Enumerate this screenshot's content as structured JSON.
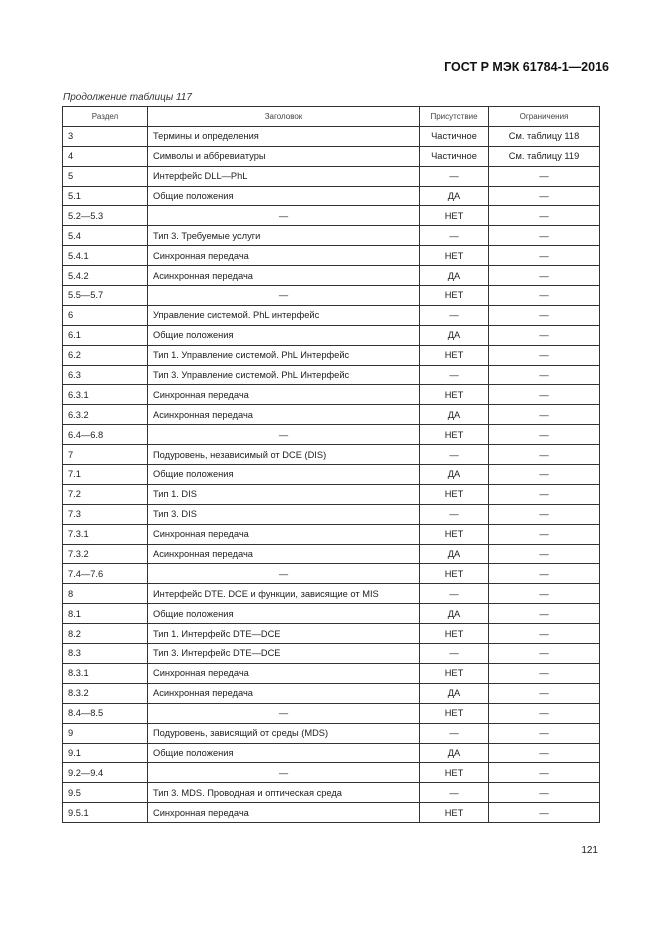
{
  "header": {
    "standard": "ГОСТ Р МЭК 61784-1—2016"
  },
  "caption": "Продолжение таблицы 117",
  "table": {
    "columns": [
      "Раздел",
      "Заголовок",
      "Присутствие",
      "Ограничения"
    ],
    "rows": [
      [
        "3",
        "Термины и определения",
        "Частичное",
        "См. таблицу 118"
      ],
      [
        "4",
        "Символы и аббревиатуры",
        "Частичное",
        "См. таблицу 119"
      ],
      [
        "5",
        "Интерфейс DLL—PhL",
        "—",
        "—"
      ],
      [
        "5.1",
        "Общие положения",
        "ДА",
        "—"
      ],
      [
        "5.2—5.3",
        "—",
        "НЕТ",
        "—"
      ],
      [
        "5.4",
        "Тип 3. Требуемые услуги",
        "—",
        "—"
      ],
      [
        "5.4.1",
        "Синхронная передача",
        "НЕТ",
        "—"
      ],
      [
        "5.4.2",
        "Асинхронная передача",
        "ДА",
        "—"
      ],
      [
        "5.5—5.7",
        "—",
        "НЕТ",
        "—"
      ],
      [
        "6",
        "Управление системой. PhL интерфейс",
        "—",
        "—"
      ],
      [
        "6.1",
        "Общие положения",
        "ДА",
        "—"
      ],
      [
        "6.2",
        "Тип 1. Управление системой. PhL Интерфейс",
        "НЕТ",
        "—"
      ],
      [
        "6.3",
        "Тип 3. Управление системой. PhL Интерфейс",
        "—",
        "—"
      ],
      [
        "6.3.1",
        "Синхронная передача",
        "НЕТ",
        "—"
      ],
      [
        "6.3.2",
        "Асинхронная передача",
        "ДА",
        "—"
      ],
      [
        "6.4—6.8",
        "—",
        "НЕТ",
        "—"
      ],
      [
        "7",
        "Подуровень, независимый от DCE (DIS)",
        "—",
        "—"
      ],
      [
        "7.1",
        "Общие положения",
        "ДА",
        "—"
      ],
      [
        "7.2",
        "Тип 1. DIS",
        "НЕТ",
        "—"
      ],
      [
        "7.3",
        "Тип 3. DIS",
        "—",
        "—"
      ],
      [
        "7.3.1",
        "Синхронная передача",
        "НЕТ",
        "—"
      ],
      [
        "7.3.2",
        "Асинхронная передача",
        "ДА",
        "—"
      ],
      [
        "7.4—7.6",
        "—",
        "НЕТ",
        "—"
      ],
      [
        "8",
        "Интерфейс DTE. DCE и функции, зависящие от MIS",
        "—",
        "—"
      ],
      [
        "8.1",
        "Общие положения",
        "ДА",
        "—"
      ],
      [
        "8.2",
        "Тип 1. Интерфейс DTE—DCE",
        "НЕТ",
        "—"
      ],
      [
        "8.3",
        "Тип 3. Интерфейс DTE—DCE",
        "—",
        "—"
      ],
      [
        "8.3.1",
        "Синхронная передача",
        "НЕТ",
        "—"
      ],
      [
        "8.3.2",
        "Асинхронная передача",
        "ДА",
        "—"
      ],
      [
        "8.4—8.5",
        "—",
        "НЕТ",
        "—"
      ],
      [
        "9",
        "Подуровень, зависящий от среды (MDS)",
        "—",
        "—"
      ],
      [
        "9.1",
        "Общие положения",
        "ДА",
        "—"
      ],
      [
        "9.2—9.4",
        "—",
        "НЕТ",
        "—"
      ],
      [
        "9.5",
        "Тип 3. MDS. Проводная и оптическая среда",
        "—",
        "—"
      ],
      [
        "9.5.1",
        "Синхронная передача",
        "НЕТ",
        "—"
      ]
    ]
  },
  "page_number": "121"
}
